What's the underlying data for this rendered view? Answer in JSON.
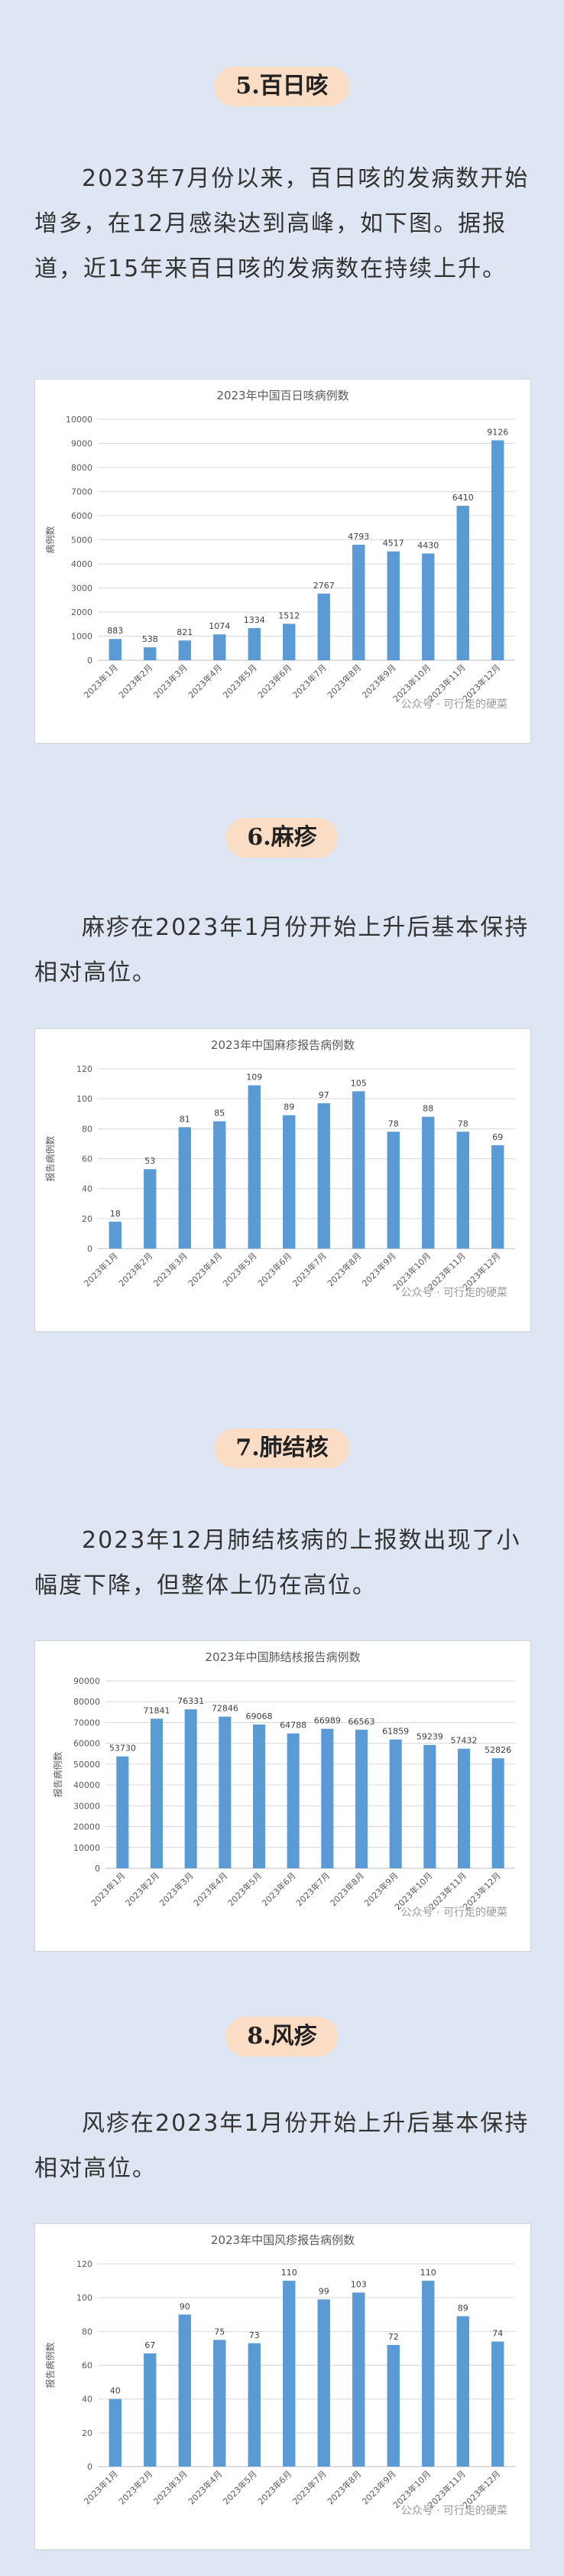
{
  "sections": [
    {
      "heading": "5.百日咳",
      "text": "2023年7月份以来，百日咳的发病数开始增多，在12月感染达到高峰，如下图。据报道，近15年来百日咳的发病数在持续上升。"
    },
    {
      "heading": "6.麻疹",
      "text": "麻疹在2023年1月份开始上升后基本保持相对高位。"
    },
    {
      "heading": "7.肺结核",
      "text": "2023年12月肺结核病的上报数出现了小幅度下降，但整体上仍在高位。"
    },
    {
      "heading": "8.风疹",
      "text": "风疹在2023年1月份开始上升后基本保持相对高位。"
    }
  ],
  "watermark": "公众号 · 可行走的硬菜",
  "colors": {
    "bar": "#5b9bd5",
    "grid": "#d9d9d9",
    "pill": "#fbdcc4",
    "background": "#dde6f2"
  },
  "chart_data": [
    {
      "type": "bar",
      "title": "2023年中国百日咳病例数",
      "ylabel": "病例数",
      "xlabel": "",
      "categories": [
        "2023年1月",
        "2023年2月",
        "2023年3月",
        "2023年4月",
        "2023年5月",
        "2023年6月",
        "2023年7月",
        "2023年8月",
        "2023年9月",
        "2023年10月",
        "2023年11月",
        "2023年12月"
      ],
      "values": [
        883,
        538,
        821,
        1074,
        1334,
        1512,
        2767,
        4793,
        4517,
        4430,
        6410,
        9126
      ],
      "ylim": [
        0,
        10000
      ],
      "yticks": [
        0,
        1000,
        2000,
        3000,
        4000,
        5000,
        6000,
        7000,
        8000,
        9000,
        10000
      ],
      "grid": true,
      "legend": "none"
    },
    {
      "type": "bar",
      "title": "2023年中国麻疹报告病例数",
      "ylabel": "报告病例数",
      "xlabel": "",
      "categories": [
        "2023年1月",
        "2023年2月",
        "2023年3月",
        "2023年4月",
        "2023年5月",
        "2023年6月",
        "2023年7月",
        "2023年8月",
        "2023年9月",
        "2023年10月",
        "2023年11月",
        "2023年12月"
      ],
      "values": [
        18,
        53,
        81,
        85,
        109,
        89,
        97,
        105,
        78,
        88,
        78,
        69
      ],
      "ylim": [
        0,
        120
      ],
      "yticks": [
        0,
        20,
        40,
        60,
        80,
        100,
        120
      ],
      "grid": true,
      "legend": "none"
    },
    {
      "type": "bar",
      "title": "2023年中国肺结核报告病例数",
      "ylabel": "报告病例数",
      "xlabel": "",
      "categories": [
        "2023年1月",
        "2023年2月",
        "2023年3月",
        "2023年4月",
        "2023年5月",
        "2023年6月",
        "2023年7月",
        "2023年8月",
        "2023年9月",
        "2023年10月",
        "2023年11月",
        "2023年12月"
      ],
      "values": [
        53730,
        71841,
        76331,
        72846,
        69068,
        64788,
        66989,
        66563,
        61859,
        59239,
        57432,
        52826
      ],
      "ylim": [
        0,
        90000
      ],
      "yticks": [
        0,
        10000,
        20000,
        30000,
        40000,
        50000,
        60000,
        70000,
        80000,
        90000
      ],
      "grid": true,
      "legend": "none"
    },
    {
      "type": "bar",
      "title": "2023年中国风疹报告病例数",
      "ylabel": "报告病例数",
      "xlabel": "",
      "categories": [
        "2023年1月",
        "2023年2月",
        "2023年3月",
        "2023年4月",
        "2023年5月",
        "2023年6月",
        "2023年7月",
        "2023年8月",
        "2023年9月",
        "2023年10月",
        "2023年11月",
        "2023年12月"
      ],
      "values": [
        40,
        67,
        90,
        75,
        73,
        110,
        99,
        103,
        72,
        110,
        89,
        74
      ],
      "ylim": [
        0,
        120
      ],
      "yticks": [
        0,
        20,
        40,
        60,
        80,
        100,
        120
      ],
      "grid": true,
      "legend": "none"
    }
  ]
}
